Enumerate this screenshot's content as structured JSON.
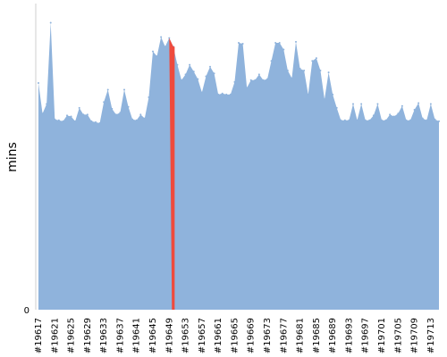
{
  "chart_data": {
    "type": "area",
    "title": "",
    "xlabel": "",
    "ylabel": "mins",
    "y_tick_labels": [
      "0"
    ],
    "ylim": [
      0,
      320
    ],
    "fill_color": "#8fb3dc",
    "highlight_color": "#ef4b3d",
    "highlight_x": "#19650",
    "x_tick_labels": [
      "#19617",
      "#19621",
      "#19625",
      "#19629",
      "#19633",
      "#19637",
      "#19641",
      "#19645",
      "#19649",
      "#19653",
      "#19657",
      "#19661",
      "#19665",
      "#19669",
      "#19673",
      "#19677",
      "#19681",
      "#19685",
      "#19689",
      "#19693",
      "#19697",
      "#19701",
      "#19705",
      "#19709",
      "#19713"
    ],
    "x": [
      "#19617",
      "#19618",
      "#19619",
      "#19620",
      "#19621",
      "#19622",
      "#19623",
      "#19624",
      "#19625",
      "#19626",
      "#19627",
      "#19628",
      "#19629",
      "#19630",
      "#19631",
      "#19632",
      "#19633",
      "#19634",
      "#19635",
      "#19636",
      "#19637",
      "#19638",
      "#19639",
      "#19640",
      "#19641",
      "#19642",
      "#19643",
      "#19644",
      "#19645",
      "#19646",
      "#19647",
      "#19648",
      "#19649",
      "#19650",
      "#19651",
      "#19652",
      "#19653",
      "#19654",
      "#19655",
      "#19656",
      "#19657",
      "#19658",
      "#19659",
      "#19660",
      "#19661",
      "#19662",
      "#19663",
      "#19664",
      "#19665",
      "#19666",
      "#19667",
      "#19668",
      "#19669",
      "#19670",
      "#19671",
      "#19672",
      "#19673",
      "#19674",
      "#19675",
      "#19676",
      "#19677",
      "#19678",
      "#19679",
      "#19680",
      "#19681",
      "#19682",
      "#19683",
      "#19684",
      "#19685",
      "#19686",
      "#19687",
      "#19688",
      "#19689",
      "#19690",
      "#19691",
      "#19692",
      "#19693",
      "#19694",
      "#19695",
      "#19696",
      "#19697",
      "#19698",
      "#19699",
      "#19700",
      "#19701",
      "#19702",
      "#19703",
      "#19704",
      "#19705",
      "#19706",
      "#19707",
      "#19708",
      "#19709",
      "#19710",
      "#19711",
      "#19712",
      "#19713",
      "#19714",
      "#19715"
    ],
    "values": [
      237,
      205,
      215,
      300,
      199,
      198,
      197,
      203,
      202,
      197,
      211,
      204,
      204,
      197,
      196,
      195,
      217,
      230,
      210,
      204,
      206,
      230,
      212,
      199,
      198,
      204,
      200,
      222,
      270,
      265,
      285,
      275,
      284,
      275,
      256,
      240,
      246,
      256,
      249,
      241,
      227,
      244,
      254,
      247,
      225,
      226,
      225,
      225,
      238,
      279,
      278,
      232,
      240,
      240,
      246,
      240,
      241,
      260,
      279,
      279,
      272,
      250,
      242,
      280,
      252,
      250,
      225,
      260,
      263,
      250,
      220,
      248,
      225,
      211,
      198,
      198,
      198,
      215,
      198,
      215,
      198,
      198,
      203,
      215,
      198,
      198,
      204,
      202,
      205,
      213,
      198,
      198,
      209,
      216,
      200,
      198,
      215,
      199,
      197
    ]
  }
}
